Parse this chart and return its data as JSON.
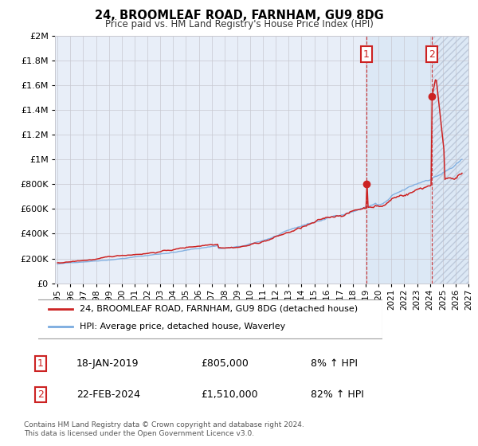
{
  "title": "24, BROOMLEAF ROAD, FARNHAM, GU9 8DG",
  "subtitle": "Price paid vs. HM Land Registry's House Price Index (HPI)",
  "start_year": 1995,
  "end_year": 2027,
  "y_max": 2000000,
  "y_ticks": [
    0,
    200000,
    400000,
    600000,
    800000,
    1000000,
    1200000,
    1400000,
    1600000,
    1800000,
    2000000
  ],
  "sale1_year": 2019.05,
  "sale1_price": 805000,
  "sale1_label": "1",
  "sale2_year": 2024.15,
  "sale2_price": 1510000,
  "sale2_label": "2",
  "red_color": "#cc2222",
  "blue_color": "#7aabdf",
  "bg_color": "#e8eef8",
  "span_bg_color": "#dce8f5",
  "hatch_bg_color": "#dce8f5",
  "grid_color": "#c8c8d0",
  "legend1": "24, BROOMLEAF ROAD, FARNHAM, GU9 8DG (detached house)",
  "legend2": "HPI: Average price, detached house, Waverley",
  "footnote": "Contains HM Land Registry data © Crown copyright and database right 2024.\nThis data is licensed under the Open Government Licence v3.0.",
  "table_row1": [
    "1",
    "18-JAN-2019",
    "£805,000",
    "8% ↑ HPI"
  ],
  "table_row2": [
    "2",
    "22-FEB-2024",
    "£1,510,000",
    "82% ↑ HPI"
  ]
}
